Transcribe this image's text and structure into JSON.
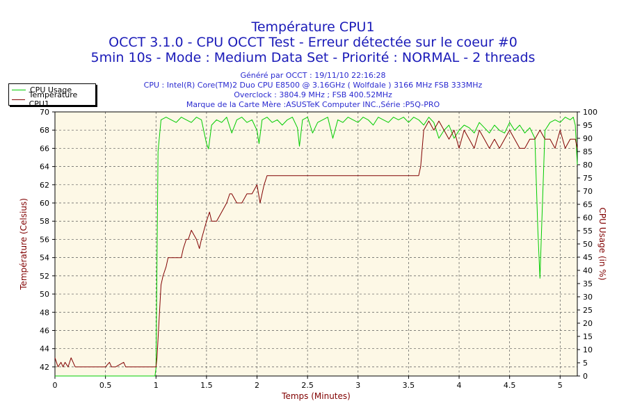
{
  "header": {
    "title": "Température CPU1",
    "subtitle1": "OCCT 3.1.0 - CPU OCCT Test - Erreur détectée sur le coeur #0",
    "subtitle2": "5min 10s - Mode : Medium Data Set - Priorité : NORMAL - 2 threads",
    "info": [
      "Généré par OCCT : 19/11/10 22:16:28",
      "CPU : Intel(R) Core(TM)2 Duo CPU E8500 @ 3.16GHz ( Wolfdale ) 3166 MHz FSB 333MHz",
      "Overclock : 3804.9 MHz ; FSB 400.52MHz",
      "Marque de la Carte Mère :ASUSTeK Computer INC.,Série :P5Q-PRO"
    ]
  },
  "legend": [
    {
      "label": "CPU Usage",
      "color": "#00cc00"
    },
    {
      "label": "Température CPU1",
      "color": "#800000"
    }
  ],
  "chart_data": {
    "type": "line",
    "title": "Température CPU1",
    "xlabel": "Temps (Minutes)",
    "ylabel": "Température (Celsius)",
    "y2label": "CPU Usage (in %)",
    "xlim": [
      0,
      5.17
    ],
    "ylim": [
      41,
      70
    ],
    "y2lim": [
      0,
      100
    ],
    "x_ticks": [
      "0",
      "0.5",
      "1",
      "1.5",
      "2",
      "2.5",
      "3",
      "3.5",
      "4",
      "4.5",
      "5"
    ],
    "y_ticks": [
      "42",
      "44",
      "46",
      "48",
      "50",
      "52",
      "54",
      "56",
      "58",
      "60",
      "62",
      "64",
      "66",
      "68",
      "70"
    ],
    "y2_ticks": [
      "0",
      "5",
      "10",
      "15",
      "20",
      "25",
      "30",
      "35",
      "40",
      "45",
      "50",
      "55",
      "60",
      "65",
      "70",
      "75",
      "80",
      "85",
      "90",
      "95",
      "100"
    ],
    "grid": true,
    "legend_position": "top-left",
    "background_color": "#fdf8e6",
    "series": [
      {
        "name": "CPU Usage",
        "axis": "right",
        "color": "#00cc00",
        "x": [
          0,
          0.5,
          0.99,
          1.0,
          1.02,
          1.05,
          1.1,
          1.15,
          1.2,
          1.25,
          1.3,
          1.35,
          1.4,
          1.45,
          1.5,
          1.52,
          1.55,
          1.6,
          1.65,
          1.7,
          1.75,
          1.8,
          1.85,
          1.9,
          1.95,
          2.0,
          2.02,
          2.05,
          2.1,
          2.15,
          2.2,
          2.25,
          2.3,
          2.35,
          2.4,
          2.42,
          2.45,
          2.5,
          2.55,
          2.6,
          2.65,
          2.7,
          2.75,
          2.8,
          2.85,
          2.9,
          2.95,
          3.0,
          3.05,
          3.1,
          3.15,
          3.2,
          3.25,
          3.3,
          3.35,
          3.4,
          3.45,
          3.5,
          3.55,
          3.6,
          3.65,
          3.7,
          3.75,
          3.8,
          3.85,
          3.9,
          3.95,
          4.0,
          4.05,
          4.1,
          4.15,
          4.2,
          4.25,
          4.3,
          4.35,
          4.4,
          4.45,
          4.5,
          4.55,
          4.6,
          4.65,
          4.7,
          4.75,
          4.78,
          4.8,
          4.82,
          4.85,
          4.9,
          4.95,
          5.0,
          5.05,
          5.1,
          5.13,
          5.15,
          5.17
        ],
        "values": [
          0,
          0,
          0,
          3,
          85,
          97,
          98,
          97,
          96,
          98,
          97,
          96,
          98,
          97,
          88,
          86,
          95,
          97,
          96,
          98,
          92,
          97,
          98,
          96,
          97,
          93,
          88,
          97,
          98,
          96,
          97,
          95,
          97,
          98,
          94,
          87,
          97,
          98,
          92,
          96,
          97,
          98,
          90,
          97,
          96,
          98,
          97,
          96,
          98,
          97,
          95,
          98,
          97,
          96,
          98,
          97,
          98,
          96,
          98,
          97,
          95,
          98,
          96,
          90,
          93,
          95,
          90,
          93,
          95,
          94,
          92,
          96,
          94,
          92,
          95,
          93,
          92,
          96,
          93,
          95,
          92,
          94,
          90,
          55,
          37,
          60,
          93,
          96,
          97,
          96,
          98,
          97,
          98,
          95,
          80
        ]
      },
      {
        "name": "Température CPU1",
        "axis": "left",
        "color": "#800000",
        "x": [
          0,
          0.03,
          0.06,
          0.08,
          0.1,
          0.13,
          0.16,
          0.2,
          0.3,
          0.5,
          0.54,
          0.56,
          0.6,
          0.68,
          0.7,
          0.72,
          1.0,
          1.01,
          1.03,
          1.05,
          1.07,
          1.1,
          1.12,
          1.15,
          1.2,
          1.25,
          1.27,
          1.3,
          1.32,
          1.35,
          1.4,
          1.43,
          1.45,
          1.5,
          1.53,
          1.55,
          1.6,
          1.65,
          1.7,
          1.73,
          1.75,
          1.8,
          1.85,
          1.9,
          1.95,
          2.0,
          2.03,
          2.05,
          2.07,
          2.1,
          2.15,
          2.2,
          2.5,
          3.0,
          3.5,
          3.6,
          3.62,
          3.65,
          3.7,
          3.75,
          3.8,
          3.85,
          3.9,
          3.95,
          4.0,
          4.05,
          4.1,
          4.15,
          4.2,
          4.25,
          4.3,
          4.35,
          4.4,
          4.45,
          4.5,
          4.55,
          4.6,
          4.65,
          4.7,
          4.75,
          4.8,
          4.85,
          4.9,
          4.95,
          5.0,
          5.05,
          5.1,
          5.15,
          5.17
        ],
        "values": [
          43,
          42,
          42.5,
          42,
          42.5,
          42,
          43,
          42,
          42,
          42,
          42.5,
          42,
          42,
          42.5,
          42,
          42,
          42,
          43,
          47,
          51,
          52,
          53,
          54,
          54,
          54,
          54,
          55,
          56,
          56,
          57,
          56,
          55,
          56,
          58,
          59,
          58,
          58,
          59,
          60,
          61,
          61,
          60,
          60,
          61,
          61,
          62,
          60,
          61,
          62,
          63,
          63,
          63,
          63,
          63,
          63,
          63,
          64,
          68,
          69,
          68,
          69,
          68,
          67,
          68,
          66,
          68,
          67,
          66,
          68,
          67,
          66,
          67,
          66,
          67,
          68,
          67,
          66,
          66,
          67,
          67,
          68,
          67,
          67,
          66,
          68,
          66,
          67,
          67,
          66
        ]
      }
    ]
  }
}
